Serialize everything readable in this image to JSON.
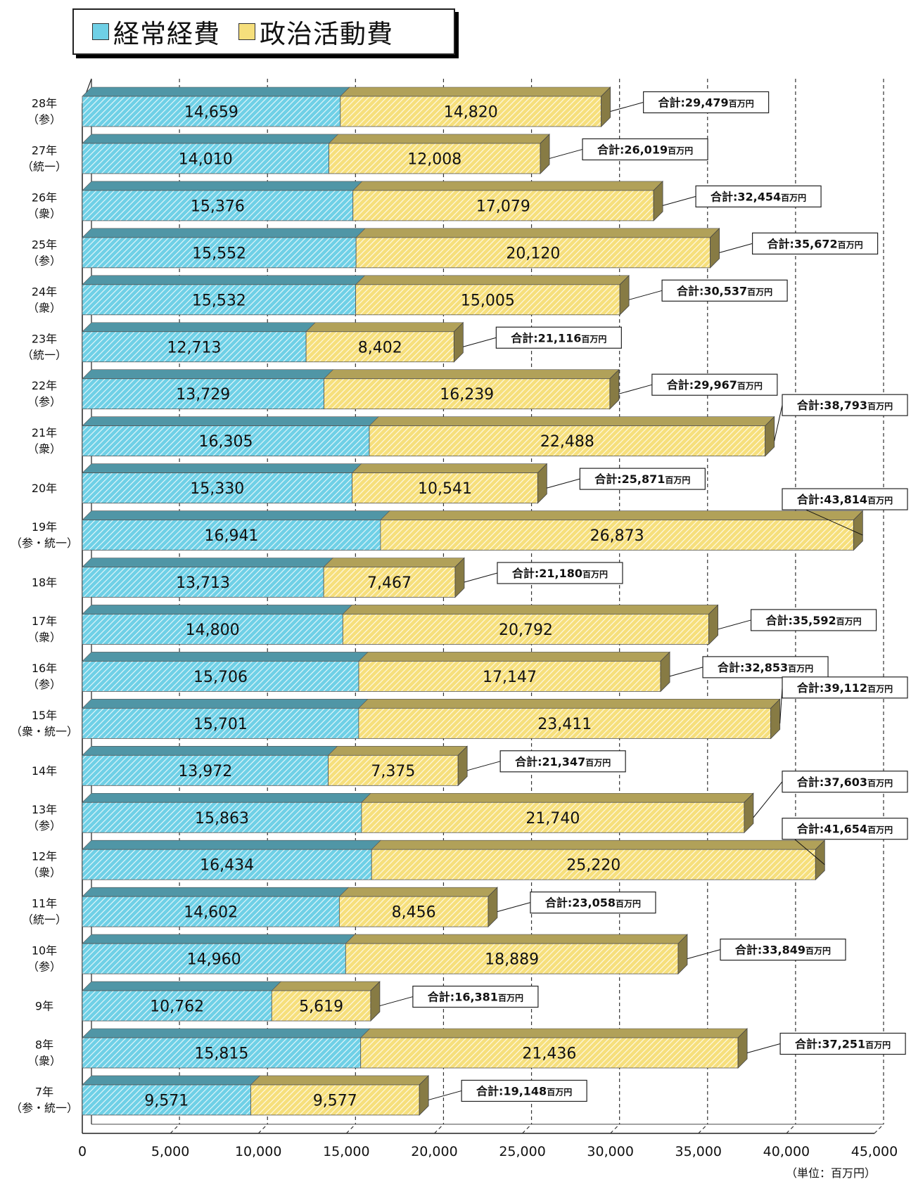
{
  "chart_data": {
    "type": "bar",
    "orientation": "horizontal",
    "stacked": true,
    "unit_note": "（単位：百万円）",
    "xlim": [
      0,
      45000
    ],
    "x_ticks": [
      "0",
      "5,000",
      "10,000",
      "15,000",
      "20,000",
      "25,000",
      "30,000",
      "35,000",
      "40,000",
      "45,000"
    ],
    "grid": "dashed vertical",
    "legend_position": "top-left",
    "total_prefix": "合計:",
    "total_unit": "百万円",
    "categories": [
      {
        "year": "28年",
        "note": "（参）"
      },
      {
        "year": "27年",
        "note": "（統一）"
      },
      {
        "year": "26年",
        "note": "（衆）"
      },
      {
        "year": "25年",
        "note": "（参）"
      },
      {
        "year": "24年",
        "note": "（衆）"
      },
      {
        "year": "23年",
        "note": "（統一）"
      },
      {
        "year": "22年",
        "note": "（参）"
      },
      {
        "year": "21年",
        "note": "（衆）"
      },
      {
        "year": "20年",
        "note": ""
      },
      {
        "year": "19年",
        "note": "（参・統一）"
      },
      {
        "year": "18年",
        "note": ""
      },
      {
        "year": "17年",
        "note": "（衆）"
      },
      {
        "year": "16年",
        "note": "（参）"
      },
      {
        "year": "15年",
        "note": "（衆・統一）"
      },
      {
        "year": "14年",
        "note": ""
      },
      {
        "year": "13年",
        "note": "（参）"
      },
      {
        "year": "12年",
        "note": "（衆）"
      },
      {
        "year": "11年",
        "note": "（統一）"
      },
      {
        "year": "10年",
        "note": "（参）"
      },
      {
        "year": "9年",
        "note": ""
      },
      {
        "year": "8年",
        "note": "（衆）"
      },
      {
        "year": "7年",
        "note": "（参・統一）"
      }
    ],
    "series": [
      {
        "name": "経常経費",
        "color": "#6fd0e6",
        "values": [
          14659,
          14010,
          15376,
          15552,
          15532,
          12713,
          13729,
          16305,
          15330,
          16941,
          13713,
          14800,
          15706,
          15701,
          13972,
          15863,
          16434,
          14602,
          14960,
          10762,
          15815,
          9571
        ],
        "labels": [
          "14,659",
          "14,010",
          "15,376",
          "15,552",
          "15,532",
          "12,713",
          "13,729",
          "16,305",
          "15,330",
          "16,941",
          "13,713",
          "14,800",
          "15,706",
          "15,701",
          "13,972",
          "15,863",
          "16,434",
          "14,602",
          "14,960",
          "10,762",
          "15,815",
          "9,571"
        ]
      },
      {
        "name": "政治活動費",
        "color": "#f6df7c",
        "values": [
          14820,
          12008,
          17079,
          20120,
          15005,
          8402,
          16239,
          22488,
          10541,
          26873,
          7467,
          20792,
          17147,
          23411,
          7375,
          21740,
          25220,
          8456,
          18889,
          5619,
          21436,
          9577
        ],
        "labels": [
          "14,820",
          "12,008",
          "17,079",
          "20,120",
          "15,005",
          "8,402",
          "16,239",
          "22,488",
          "10,541",
          "26,873",
          "7,467",
          "20,792",
          "17,147",
          "23,411",
          "7,375",
          "21,740",
          "25,220",
          "8,456",
          "18,889",
          "5,619",
          "21,436",
          "9,577"
        ]
      }
    ],
    "totals": [
      29479,
      26019,
      32454,
      35672,
      30537,
      21116,
      29967,
      38793,
      25871,
      43814,
      21180,
      35592,
      32853,
      39112,
      21347,
      37603,
      41654,
      23058,
      33849,
      16381,
      37251,
      19148
    ],
    "total_labels": [
      "29,479",
      "26,019",
      "32,454",
      "35,672",
      "30,537",
      "21,116",
      "29,967",
      "38,793",
      "25,871",
      "43,814",
      "21,180",
      "35,592",
      "32,853",
      "39,112",
      "21,347",
      "37,603",
      "41,654",
      "23,058",
      "33,849",
      "16,381",
      "37,251",
      "19,148"
    ]
  }
}
